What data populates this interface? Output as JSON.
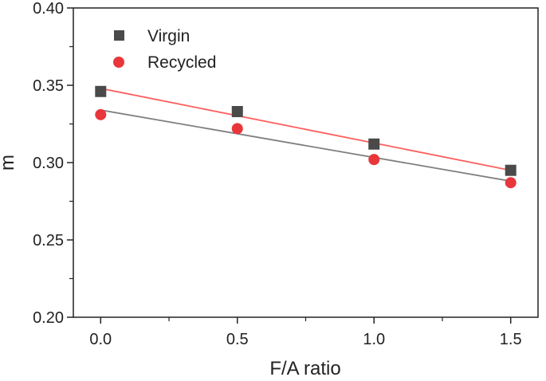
{
  "chart_data": {
    "type": "scatter",
    "title": "",
    "xlabel": "F/A ratio",
    "ylabel": "m",
    "xlim": [
      -0.1,
      1.6
    ],
    "ylim": [
      0.2,
      0.4
    ],
    "x_ticks": [
      0.0,
      0.5,
      1.0,
      1.5
    ],
    "x_tick_labels": [
      "0.0",
      "0.5",
      "1.0",
      "1.5"
    ],
    "y_ticks": [
      0.2,
      0.25,
      0.3,
      0.35,
      0.4
    ],
    "y_tick_labels": [
      "0.20",
      "0.25",
      "0.30",
      "0.35",
      "0.40"
    ],
    "grid": false,
    "legend_position": "top-left",
    "series": [
      {
        "name": "Virgin",
        "marker": "square",
        "color": "#4a4a4a",
        "x": [
          0.0,
          0.5,
          1.0,
          1.5
        ],
        "y": [
          0.346,
          0.333,
          0.312,
          0.295
        ],
        "fit": {
          "color": "#7f7f7f",
          "x": [
            0.0,
            1.5
          ],
          "y": [
            0.334,
            0.288
          ]
        }
      },
      {
        "name": "Recycled",
        "marker": "circle",
        "color": "#e8373b",
        "x": [
          0.0,
          0.5,
          1.0,
          1.5
        ],
        "y": [
          0.331,
          0.322,
          0.302,
          0.287
        ],
        "fit": {
          "color": "#ff5c5c",
          "x": [
            0.0,
            1.5
          ],
          "y": [
            0.348,
            0.295
          ]
        }
      }
    ]
  }
}
